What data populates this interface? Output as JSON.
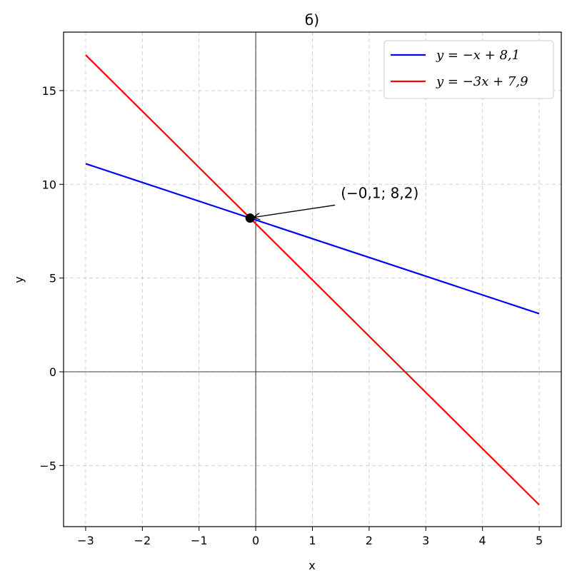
{
  "chart_data": {
    "type": "line",
    "title": "б)",
    "xlabel": "x",
    "ylabel": "y",
    "xlim": [
      -3.39,
      5.39
    ],
    "ylim": [
      -8.26,
      18.12
    ],
    "xticks": [
      -3,
      -2,
      -1,
      0,
      1,
      2,
      3,
      4,
      5
    ],
    "xtick_labels": [
      "−3",
      "−2",
      "−1",
      "0",
      "1",
      "2",
      "3",
      "4",
      "5"
    ],
    "yticks": [
      -5,
      0,
      5,
      10,
      15
    ],
    "ytick_labels": [
      "−5",
      "0",
      "5",
      "10",
      "15"
    ],
    "grid": true,
    "legend_position": "top-right",
    "series": [
      {
        "name": "y = −x + 8,1",
        "color": "#0000ff",
        "x": [
          -3,
          5
        ],
        "y": [
          11.1,
          3.1
        ]
      },
      {
        "name": "y = −3x + 7,9",
        "color": "#ff0000",
        "x": [
          -3,
          5
        ],
        "y": [
          16.9,
          -7.1
        ]
      }
    ],
    "point": {
      "x": -0.1,
      "y": 8.2,
      "color": "#000000"
    },
    "annotation": {
      "text": "(−0,1;  8,2)",
      "text_x": 1.5,
      "text_y": 9.5
    }
  }
}
